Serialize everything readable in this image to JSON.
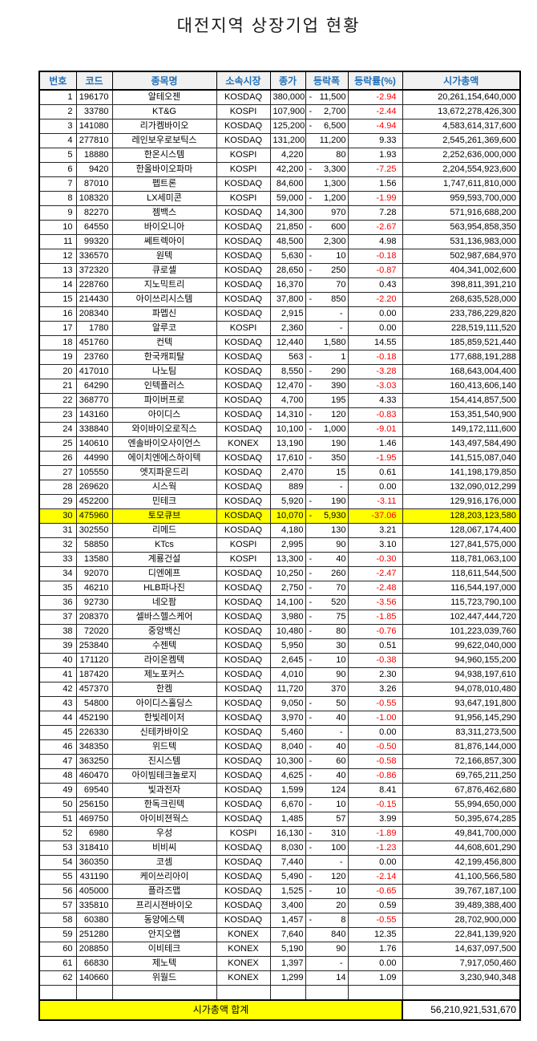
{
  "title": "대전지역 상장기업 현황",
  "colors": {
    "header_text": "#2170B8",
    "header_bg": "#F1F1F1",
    "negative": "#FF0000",
    "highlight": "#FFFF00"
  },
  "table": {
    "headers": [
      "번호",
      "코드",
      "종목명",
      "소속시장",
      "종가",
      "등락폭",
      "등락률(%)",
      "시가총액"
    ],
    "highlight_row_no": "30",
    "rows": [
      [
        "1",
        "196170",
        "알테오젠",
        "KOSDAQ",
        "380,000",
        "-11,500",
        "-2.94",
        "20,261,154,640,000"
      ],
      [
        "2",
        "33780",
        "KT&G",
        "KOSPI",
        "107,900",
        "-2,700",
        "-2.44",
        "13,672,278,426,300"
      ],
      [
        "3",
        "141080",
        "리가켐바이오",
        "KOSDAQ",
        "125,200",
        "-6,500",
        "-4.94",
        "4,583,614,317,600"
      ],
      [
        "4",
        "277810",
        "레인보우로보틱스",
        "KOSDAQ",
        "131,200",
        "11,200",
        "9.33",
        "2,545,261,369,600"
      ],
      [
        "5",
        "18880",
        "한온시스템",
        "KOSPI",
        "4,220",
        "80",
        "1.93",
        "2,252,636,000,000"
      ],
      [
        "6",
        "9420",
        "한올바이오파마",
        "KOSPI",
        "42,200",
        "-3,300",
        "-7.25",
        "2,204,554,923,600"
      ],
      [
        "7",
        "87010",
        "펩트론",
        "KOSDAQ",
        "84,600",
        "1,300",
        "1.56",
        "1,747,611,810,000"
      ],
      [
        "8",
        "108320",
        "LX세미콘",
        "KOSPI",
        "59,000",
        "-1,200",
        "-1.99",
        "959,593,700,000"
      ],
      [
        "9",
        "82270",
        "젬백스",
        "KOSDAQ",
        "14,300",
        "970",
        "7.28",
        "571,916,688,200"
      ],
      [
        "10",
        "64550",
        "바이오니아",
        "KOSDAQ",
        "21,850",
        "-600",
        "-2.67",
        "563,954,858,350"
      ],
      [
        "11",
        "99320",
        "쎄트렉아이",
        "KOSDAQ",
        "48,500",
        "2,300",
        "4.98",
        "531,136,983,000"
      ],
      [
        "12",
        "336570",
        "원텍",
        "KOSDAQ",
        "5,630",
        "-10",
        "-0.18",
        "502,987,684,970"
      ],
      [
        "13",
        "372320",
        "큐로셀",
        "KOSDAQ",
        "28,650",
        "-250",
        "-0.87",
        "404,341,002,600"
      ],
      [
        "14",
        "228760",
        "지노믹트리",
        "KOSDAQ",
        "16,370",
        "70",
        "0.43",
        "398,811,391,210"
      ],
      [
        "15",
        "214430",
        "아이쓰리시스템",
        "KOSDAQ",
        "37,800",
        "-850",
        "-2.20",
        "268,635,528,000"
      ],
      [
        "16",
        "208340",
        "파멥신",
        "KOSDAQ",
        "2,915",
        "-",
        "0.00",
        "233,786,229,820"
      ],
      [
        "17",
        "1780",
        "알루코",
        "KOSPI",
        "2,360",
        "-",
        "0.00",
        "228,519,111,520"
      ],
      [
        "18",
        "451760",
        "컨텍",
        "KOSDAQ",
        "12,440",
        "1,580",
        "14.55",
        "185,859,521,440"
      ],
      [
        "19",
        "23760",
        "한국캐피탈",
        "KOSDAQ",
        "563",
        "-1",
        "-0.18",
        "177,688,191,288"
      ],
      [
        "20",
        "417010",
        "나노팀",
        "KOSDAQ",
        "8,550",
        "-290",
        "-3.28",
        "168,643,004,400"
      ],
      [
        "21",
        "64290",
        "인텍플러스",
        "KOSDAQ",
        "12,470",
        "-390",
        "-3.03",
        "160,413,606,140"
      ],
      [
        "22",
        "368770",
        "파이버프로",
        "KOSDAQ",
        "4,700",
        "195",
        "4.33",
        "154,414,857,500"
      ],
      [
        "23",
        "143160",
        "아이디스",
        "KOSDAQ",
        "14,310",
        "-120",
        "-0.83",
        "153,351,540,900"
      ],
      [
        "24",
        "338840",
        "와이바이오로직스",
        "KOSDAQ",
        "10,100",
        "-1,000",
        "-9.01",
        "149,172,111,600"
      ],
      [
        "25",
        "140610",
        "엔솔바이오사이언스",
        "KONEX",
        "13,190",
        "190",
        "1.46",
        "143,497,584,490"
      ],
      [
        "26",
        "44990",
        "에이치엔에스하이텍",
        "KOSDAQ",
        "17,610",
        "-350",
        "-1.95",
        "141,515,087,040"
      ],
      [
        "27",
        "105550",
        "엣지파운드리",
        "KOSDAQ",
        "2,470",
        "15",
        "0.61",
        "141,198,179,850"
      ],
      [
        "28",
        "269620",
        "시스웍",
        "KOSDAQ",
        "889",
        "-",
        "0.00",
        "132,090,012,299"
      ],
      [
        "29",
        "452200",
        "민테크",
        "KOSDAQ",
        "5,920",
        "-190",
        "-3.11",
        "129,916,176,000"
      ],
      [
        "30",
        "475960",
        "토모큐브",
        "KOSDAQ",
        "10,070",
        "-5,930",
        "-37.06",
        "128,203,123,580"
      ],
      [
        "31",
        "302550",
        "리메드",
        "KOSDAQ",
        "4,180",
        "130",
        "3.21",
        "128,067,174,400"
      ],
      [
        "32",
        "58850",
        "KTcs",
        "KOSPI",
        "2,995",
        "90",
        "3.10",
        "127,841,575,000"
      ],
      [
        "33",
        "13580",
        "계룡건설",
        "KOSPI",
        "13,300",
        "-40",
        "-0.30",
        "118,781,063,100"
      ],
      [
        "34",
        "92070",
        "디엔에프",
        "KOSDAQ",
        "10,250",
        "-260",
        "-2.47",
        "118,611,544,500"
      ],
      [
        "35",
        "46210",
        "HLB파나진",
        "KOSDAQ",
        "2,750",
        "-70",
        "-2.48",
        "116,544,197,000"
      ],
      [
        "36",
        "92730",
        "네오팜",
        "KOSDAQ",
        "14,100",
        "-520",
        "-3.56",
        "115,723,790,100"
      ],
      [
        "37",
        "208370",
        "셀바스헬스케어",
        "KOSDAQ",
        "3,980",
        "-75",
        "-1.85",
        "102,447,444,720"
      ],
      [
        "38",
        "72020",
        "중앙백신",
        "KOSDAQ",
        "10,480",
        "-80",
        "-0.76",
        "101,223,039,760"
      ],
      [
        "39",
        "253840",
        "수젠텍",
        "KOSDAQ",
        "5,950",
        "30",
        "0.51",
        "99,622,040,000"
      ],
      [
        "40",
        "171120",
        "라이온켐텍",
        "KOSDAQ",
        "2,645",
        "-10",
        "-0.38",
        "94,960,155,200"
      ],
      [
        "41",
        "187420",
        "제노포커스",
        "KOSDAQ",
        "4,010",
        "90",
        "2.30",
        "94,938,197,610"
      ],
      [
        "42",
        "457370",
        "한켐",
        "KOSDAQ",
        "11,720",
        "370",
        "3.26",
        "94,078,010,480"
      ],
      [
        "43",
        "54800",
        "아이디스홀딩스",
        "KOSDAQ",
        "9,050",
        "-50",
        "-0.55",
        "93,647,191,800"
      ],
      [
        "44",
        "452190",
        "한빛레이저",
        "KOSDAQ",
        "3,970",
        "-40",
        "-1.00",
        "91,956,145,290"
      ],
      [
        "45",
        "226330",
        "신테카바이오",
        "KOSDAQ",
        "5,460",
        "-",
        "0.00",
        "83,311,273,500"
      ],
      [
        "46",
        "348350",
        "위드텍",
        "KOSDAQ",
        "8,040",
        "-40",
        "-0.50",
        "81,876,144,000"
      ],
      [
        "47",
        "363250",
        "진시스템",
        "KOSDAQ",
        "10,300",
        "-60",
        "-0.58",
        "72,166,857,300"
      ],
      [
        "48",
        "460470",
        "아이빔테크놀로지",
        "KOSDAQ",
        "4,625",
        "-40",
        "-0.86",
        "69,765,211,250"
      ],
      [
        "49",
        "69540",
        "빛과전자",
        "KOSDAQ",
        "1,599",
        "124",
        "8.41",
        "67,876,462,680"
      ],
      [
        "50",
        "256150",
        "한독크린텍",
        "KOSDAQ",
        "6,670",
        "-10",
        "-0.15",
        "55,994,650,000"
      ],
      [
        "51",
        "469750",
        "아이비젼웍스",
        "KOSDAQ",
        "1,485",
        "57",
        "3.99",
        "50,395,674,285"
      ],
      [
        "52",
        "6980",
        "우성",
        "KOSPI",
        "16,130",
        "-310",
        "-1.89",
        "49,841,700,000"
      ],
      [
        "53",
        "318410",
        "비비씨",
        "KOSDAQ",
        "8,030",
        "-100",
        "-1.23",
        "44,608,601,290"
      ],
      [
        "54",
        "360350",
        "코셈",
        "KOSDAQ",
        "7,440",
        "-",
        "0.00",
        "42,199,456,800"
      ],
      [
        "55",
        "431190",
        "케이쓰리아이",
        "KOSDAQ",
        "5,490",
        "-120",
        "-2.14",
        "41,100,566,580"
      ],
      [
        "56",
        "405000",
        "플라즈맵",
        "KOSDAQ",
        "1,525",
        "-10",
        "-0.65",
        "39,767,187,100"
      ],
      [
        "57",
        "335810",
        "프리시젼바이오",
        "KOSDAQ",
        "3,400",
        "20",
        "0.59",
        "39,489,388,400"
      ],
      [
        "58",
        "60380",
        "동양에스텍",
        "KOSDAQ",
        "1,457",
        "-8",
        "-0.55",
        "28,702,900,000"
      ],
      [
        "59",
        "251280",
        "안지오랩",
        "KONEX",
        "7,640",
        "840",
        "12.35",
        "22,841,139,920"
      ],
      [
        "60",
        "208850",
        "이비테크",
        "KONEX",
        "5,190",
        "90",
        "1.76",
        "14,637,097,500"
      ],
      [
        "61",
        "66830",
        "제노텍",
        "KONEX",
        "1,397",
        "-",
        "0.00",
        "7,917,050,460"
      ],
      [
        "62",
        "140660",
        "위월드",
        "KONEX",
        "1,299",
        "14",
        "1.09",
        "3,230,940,348"
      ]
    ]
  },
  "footer": {
    "label": "시가총액 합계",
    "total": "56,210,921,531,670"
  }
}
